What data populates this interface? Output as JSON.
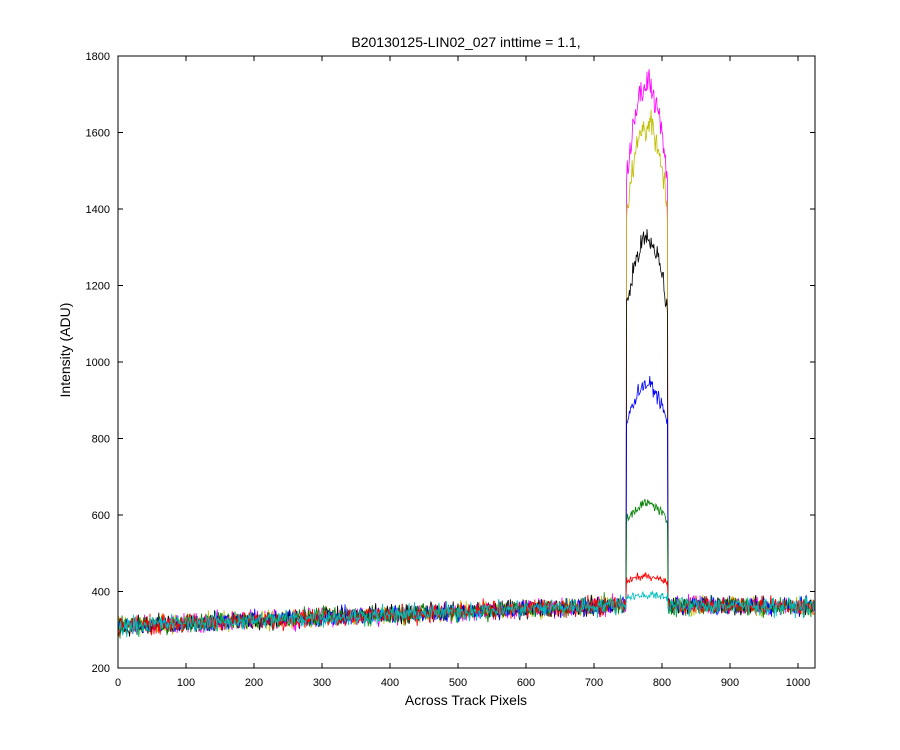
{
  "chart_data": {
    "type": "line",
    "title": "B20130125-LIN02_027 inttime = 1.1,",
    "xlabel": "Across Track Pixels",
    "ylabel": "Intensity (ADU)",
    "xlim": [
      0,
      1025
    ],
    "ylim": [
      200,
      1800
    ],
    "xticks": [
      0,
      100,
      200,
      300,
      400,
      500,
      600,
      700,
      800,
      900,
      1000
    ],
    "yticks": [
      200,
      400,
      600,
      800,
      1000,
      1200,
      1400,
      1600,
      1800
    ],
    "grid": false,
    "legend": "none",
    "baseline": {
      "x": [
        0,
        740,
        1025
      ],
      "y": [
        310,
        365,
        360
      ],
      "noise": 12
    },
    "peak": {
      "x_start": 748,
      "x_end": 808,
      "x_center": 778
    },
    "series": [
      {
        "color": "#FF00FF",
        "peak_value": 1720
      },
      {
        "color": "#BFBF00",
        "peak_value": 1620
      },
      {
        "color": "#000000",
        "peak_value": 1320
      },
      {
        "color": "#0000FF",
        "peak_value": 940
      },
      {
        "color": "#008000",
        "peak_value": 630
      },
      {
        "color": "#FF0000",
        "peak_value": 440
      },
      {
        "color": "#00BFBF",
        "peak_value": 390
      }
    ]
  }
}
